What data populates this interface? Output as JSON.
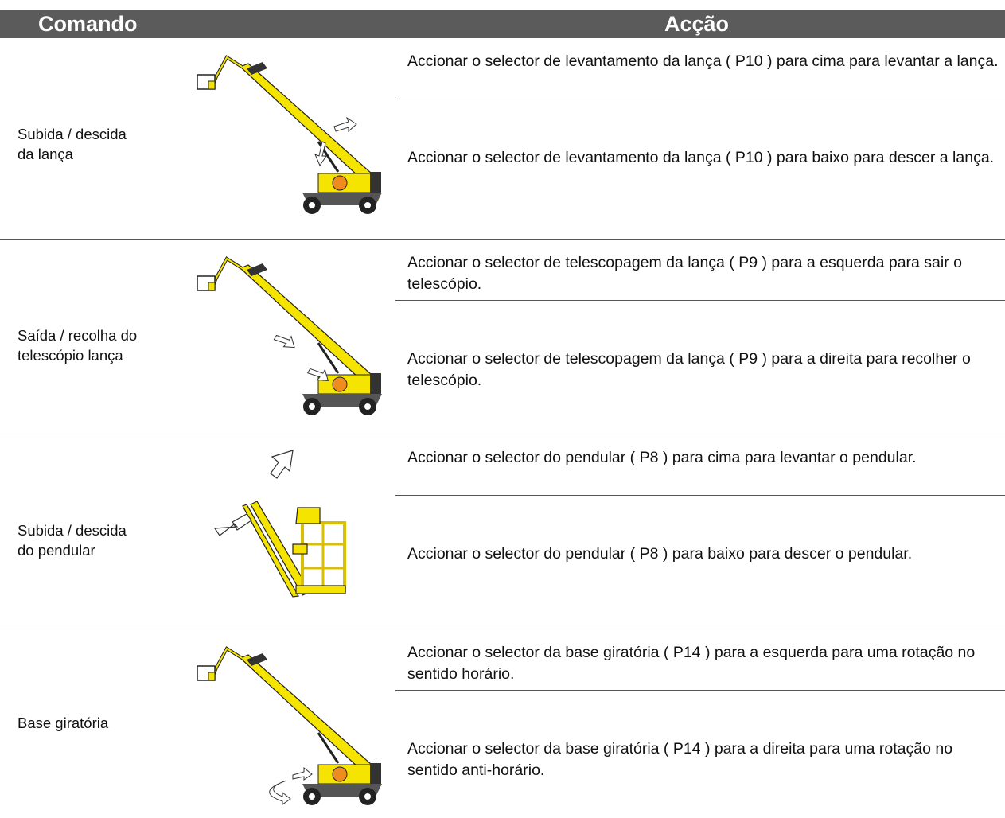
{
  "header": {
    "command": "Comando",
    "action": "Acção"
  },
  "rows": [
    {
      "command": "Subida / descida\nda lança",
      "actions": [
        "Accionar o selector de levantamento da lança ( P10 ) para cima para levantar a lança.",
        "Accionar o selector de levantamento da lança ( P10 ) para baixo para descer a lança."
      ]
    },
    {
      "command": "Saída / recolha do\ntelescópio lança",
      "actions": [
        "Accionar o selector de telescopagem da lança ( P9 ) para a esquerda para sair o telescópio.",
        "Accionar o selector de telescopagem da lança ( P9 ) para a direita para recolher o telescópio."
      ]
    },
    {
      "command": "Subida / descida\ndo pendular",
      "actions": [
        "Accionar o selector do pendular ( P8 ) para cima para levantar o pendular.",
        "Accionar o selector do pendular ( P8 ) para baixo para descer o pendular."
      ]
    },
    {
      "command": "Base giratória",
      "actions": [
        "Accionar o selector da base giratória ( P14 ) para a esquerda para uma rotação no sentido horário.",
        "Accionar o selector da base giratória ( P14 ) para a direita para uma rotação no sentido anti-horário."
      ]
    }
  ]
}
